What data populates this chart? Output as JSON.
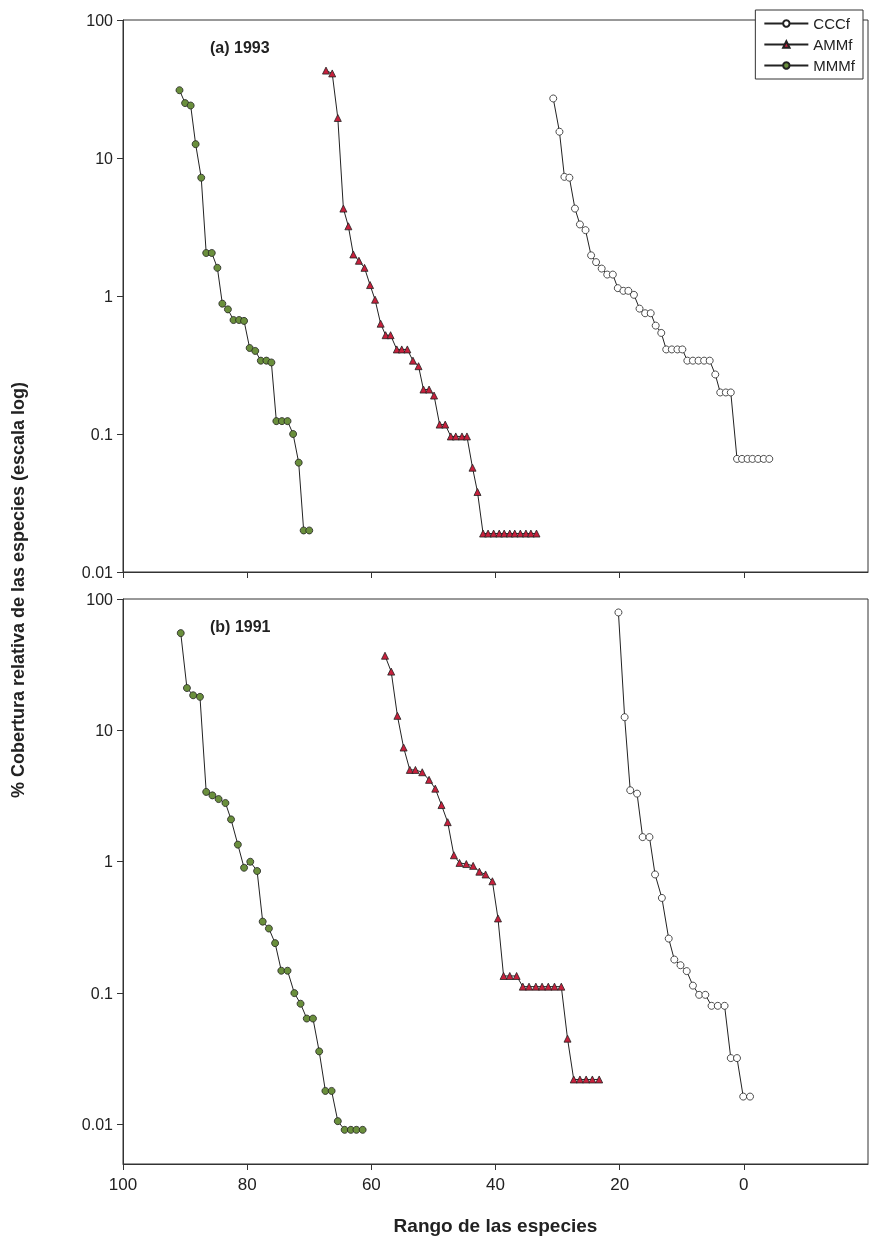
{
  "chart_data": [
    {
      "type": "line",
      "title": "(a) 1993",
      "ylabel": "% Cobertura relativa de las especies (escala log)",
      "xlim": [
        100,
        -20
      ],
      "xticks": [
        100,
        80,
        60,
        40,
        20,
        0
      ],
      "ylim": [
        0.01,
        100
      ],
      "yticks": [
        0.01,
        0.1,
        1,
        10,
        100
      ],
      "log": "y",
      "legend": "top right",
      "tick_labels": "y",
      "series": [
        {
          "name": "CCCf",
          "color": "#ffffff",
          "marker": "circle",
          "x": [
            30.7,
            29.7,
            28.9,
            28.1,
            27.2,
            26.4,
            25.5,
            24.6,
            23.8,
            22.9,
            22.0,
            21.1,
            20.3,
            19.4,
            18.6,
            17.7,
            16.8,
            15.9,
            15.0,
            14.2,
            13.3,
            12.5,
            11.6,
            10.7,
            9.9,
            9.1,
            8.2,
            7.3,
            6.4,
            5.5,
            4.6,
            3.8,
            2.9,
            2.1,
            1.1,
            0.3,
            -0.6,
            -1.4,
            -2.3,
            -3.2,
            -4.1
          ],
          "values": [
            27,
            15.5,
            7.3,
            7.2,
            4.3,
            3.3,
            3.0,
            1.97,
            1.76,
            1.58,
            1.43,
            1.43,
            1.14,
            1.09,
            1.09,
            1.02,
            0.81,
            0.75,
            0.75,
            0.61,
            0.54,
            0.41,
            0.41,
            0.41,
            0.41,
            0.34,
            0.34,
            0.34,
            0.34,
            0.34,
            0.27,
            0.2,
            0.2,
            0.2,
            0.066,
            0.066,
            0.066,
            0.066,
            0.066,
            0.066,
            0.066
          ]
        },
        {
          "name": "AMMf",
          "color": "#c8203c",
          "marker": "triangle",
          "x": [
            67.3,
            66.3,
            65.4,
            64.5,
            63.7,
            62.9,
            62.0,
            61.1,
            60.2,
            59.4,
            58.5,
            57.7,
            56.9,
            55.9,
            55.1,
            54.2,
            53.3,
            52.4,
            51.6,
            50.7,
            49.9,
            49.0,
            48.1,
            47.2,
            46.4,
            45.4,
            44.6,
            43.7,
            42.9,
            42.0,
            41.2,
            40.3,
            39.4,
            38.6,
            37.7,
            36.9,
            36.0,
            35.1,
            34.3,
            33.4
          ],
          "values": [
            43,
            41,
            19.5,
            4.3,
            3.2,
            2.0,
            1.8,
            1.6,
            1.2,
            0.94,
            0.63,
            0.52,
            0.52,
            0.41,
            0.41,
            0.41,
            0.34,
            0.31,
            0.21,
            0.21,
            0.19,
            0.117,
            0.117,
            0.096,
            0.096,
            0.096,
            0.096,
            0.057,
            0.038,
            0.019,
            0.019,
            0.019,
            0.019,
            0.019,
            0.019,
            0.019,
            0.019,
            0.019,
            0.019,
            0.019
          ]
        },
        {
          "name": "MMMf",
          "color": "#6a8f3c",
          "marker": "circle",
          "x": [
            90.9,
            90.0,
            89.1,
            88.3,
            87.4,
            86.6,
            85.7,
            84.8,
            84.0,
            83.1,
            82.2,
            81.3,
            80.5,
            79.6,
            78.7,
            77.8,
            76.9,
            76.1,
            75.3,
            74.4,
            73.5,
            72.6,
            71.7,
            70.9,
            70.0
          ],
          "values": [
            31,
            25,
            24,
            12.6,
            7.2,
            2.05,
            2.05,
            1.6,
            0.88,
            0.8,
            0.67,
            0.67,
            0.66,
            0.42,
            0.4,
            0.34,
            0.34,
            0.33,
            0.124,
            0.124,
            0.124,
            0.1,
            0.062,
            0.02,
            0.02
          ]
        }
      ]
    },
    {
      "type": "line",
      "title": "(b) 1991",
      "xlabel": "Rango de las especies",
      "xlim": [
        100,
        -20
      ],
      "xticks": [
        100,
        80,
        60,
        40,
        20,
        0
      ],
      "ylim": [
        0.005,
        100
      ],
      "yticks": [
        0.01,
        0.1,
        1,
        10,
        100
      ],
      "log": "y",
      "series": [
        {
          "color": "#ffffff",
          "marker": "circle",
          "x": [
            20.2,
            19.2,
            18.3,
            17.2,
            16.3,
            15.2,
            14.3,
            13.2,
            12.1,
            11.2,
            10.2,
            9.2,
            8.2,
            7.2,
            6.2,
            5.2,
            4.2,
            3.1,
            2.1,
            1.1,
            0.1,
            -1.0
          ],
          "values": [
            79,
            12.6,
            3.5,
            3.3,
            1.54,
            1.54,
            0.8,
            0.53,
            0.26,
            0.18,
            0.163,
            0.147,
            0.114,
            0.097,
            0.097,
            0.08,
            0.08,
            0.08,
            0.032,
            0.032,
            0.0163,
            0.0163
          ]
        },
        {
          "color": "#c8203c",
          "marker": "triangle",
          "x": [
            57.8,
            56.8,
            55.8,
            54.8,
            53.8,
            52.9,
            51.8,
            50.7,
            49.7,
            48.7,
            47.7,
            46.7,
            45.8,
            44.7,
            43.6,
            42.6,
            41.6,
            40.5,
            39.6,
            38.7,
            37.7,
            36.6,
            35.6,
            34.6,
            33.5,
            32.5,
            31.5,
            30.5,
            29.4,
            28.4,
            27.4,
            26.4,
            25.4,
            24.4,
            23.3
          ],
          "values": [
            37,
            28,
            12.9,
            7.4,
            5.0,
            5.0,
            4.8,
            4.2,
            3.6,
            2.7,
            2.0,
            1.12,
            0.98,
            0.96,
            0.93,
            0.84,
            0.8,
            0.71,
            0.37,
            0.135,
            0.135,
            0.135,
            0.112,
            0.112,
            0.112,
            0.112,
            0.112,
            0.112,
            0.112,
            0.045,
            0.022,
            0.022,
            0.022,
            0.022,
            0.022
          ]
        },
        {
          "color": "#6a8f3c",
          "marker": "circle",
          "x": [
            90.7,
            89.7,
            88.7,
            87.6,
            86.6,
            85.6,
            84.6,
            83.5,
            82.6,
            81.5,
            80.5,
            79.5,
            78.4,
            77.5,
            76.5,
            75.5,
            74.5,
            73.5,
            72.4,
            71.4,
            70.4,
            69.4,
            68.4,
            67.4,
            66.4,
            65.4,
            64.3,
            63.3,
            62.4,
            61.4
          ],
          "values": [
            55,
            21,
            18.5,
            18,
            3.4,
            3.2,
            3.0,
            2.8,
            2.1,
            1.35,
            0.9,
            1.0,
            0.85,
            0.35,
            0.31,
            0.24,
            0.148,
            0.148,
            0.1,
            0.083,
            0.064,
            0.064,
            0.036,
            0.018,
            0.018,
            0.0106,
            0.0091,
            0.0091,
            0.0091,
            0.0091
          ]
        }
      ]
    }
  ]
}
